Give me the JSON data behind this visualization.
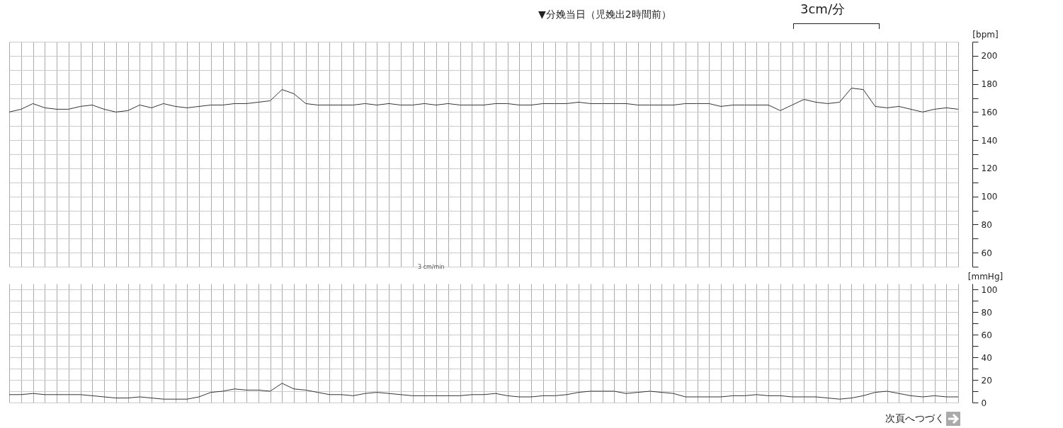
{
  "chart_data": [
    {
      "type": "line",
      "ylabel": "[bpm]",
      "annotations": [
        "▼分娩当日（児娩出2時間前）",
        "3cm/分"
      ],
      "grid": true,
      "ylim": [
        50,
        210
      ],
      "yticks": [
        {
          "value": 50,
          "label": null
        },
        60,
        {
          "value": 70,
          "label": null
        },
        80,
        {
          "value": 90,
          "label": null
        },
        100,
        {
          "value": 110,
          "label": null
        },
        120,
        {
          "value": 130,
          "label": null
        },
        140,
        {
          "value": 150,
          "label": null
        },
        160,
        {
          "value": 170,
          "label": null
        },
        180,
        {
          "value": 190,
          "label": null
        },
        200,
        {
          "value": 210,
          "label": null
        }
      ],
      "categories": [
        null,
        null,
        null,
        null,
        null,
        null,
        null,
        null,
        null,
        null,
        null,
        null,
        null,
        null,
        null,
        null,
        null,
        null,
        null,
        null,
        null,
        null,
        null,
        null,
        null,
        null,
        null,
        null,
        null,
        null,
        null,
        null,
        null,
        null,
        null,
        null,
        null,
        null,
        null,
        null,
        null,
        null,
        null,
        null,
        null,
        null,
        null,
        null,
        null,
        null,
        null,
        null,
        null,
        null,
        null,
        null,
        null,
        null,
        null,
        null,
        null,
        null,
        null,
        null,
        null,
        null,
        null,
        null,
        null,
        null,
        null,
        null,
        null,
        null,
        null,
        null,
        null,
        null,
        null,
        null,
        null
      ],
      "series": [
        {
          "color": "#333333",
          "values": [
            160,
            162,
            166,
            163,
            162,
            162,
            164,
            165,
            162,
            160,
            161,
            165,
            163,
            166,
            164,
            163,
            164,
            165,
            165,
            166,
            166,
            167,
            168,
            176,
            173,
            166,
            165,
            165,
            165,
            165,
            166,
            165,
            166,
            165,
            165,
            166,
            165,
            166,
            165,
            165,
            165,
            166,
            166,
            165,
            165,
            166,
            166,
            166,
            167,
            166,
            166,
            166,
            166,
            165,
            165,
            165,
            165,
            166,
            166,
            166,
            164,
            165,
            165,
            165,
            165,
            161,
            165,
            169,
            167,
            166,
            167,
            177,
            176,
            164,
            163,
            164,
            162,
            160,
            162,
            163,
            162
          ]
        }
      ]
    },
    {
      "type": "line",
      "ylabel": "[mmHg]",
      "annotations": [
        "3 cm/min",
        "次頁へつづく"
      ],
      "grid": true,
      "ylim": [
        0,
        105
      ],
      "yticks": [
        0,
        {
          "value": 10,
          "label": null
        },
        20,
        {
          "value": 30,
          "label": null
        },
        40,
        {
          "value": 50,
          "label": null
        },
        60,
        {
          "value": 70,
          "label": null
        },
        80,
        {
          "value": 90,
          "label": null
        },
        100
      ],
      "categories": [
        null,
        null,
        null,
        null,
        null,
        null,
        null,
        null,
        null,
        null,
        null,
        null,
        null,
        null,
        null,
        null,
        null,
        null,
        null,
        null,
        null,
        null,
        null,
        null,
        null,
        null,
        null,
        null,
        null,
        null,
        null,
        null,
        null,
        null,
        null,
        null,
        null,
        null,
        null,
        null,
        null,
        null,
        null,
        null,
        null,
        null,
        null,
        null,
        null,
        null,
        null,
        null,
        null,
        null,
        null,
        null,
        null,
        null,
        null,
        null,
        null,
        null,
        null,
        null,
        null,
        null,
        null,
        null,
        null,
        null,
        null,
        null,
        null,
        null,
        null,
        null,
        null,
        null,
        null,
        null,
        null
      ],
      "series": [
        {
          "color": "#333333",
          "values": [
            7,
            7,
            8,
            7,
            7,
            7,
            7,
            6,
            5,
            4,
            4,
            5,
            4,
            3,
            3,
            3,
            5,
            9,
            10,
            12,
            11,
            11,
            10,
            17,
            12,
            11,
            9,
            7,
            7,
            6,
            8,
            9,
            8,
            7,
            6,
            6,
            6,
            6,
            6,
            7,
            7,
            8,
            6,
            5,
            5,
            6,
            6,
            7,
            9,
            10,
            10,
            10,
            8,
            9,
            10,
            9,
            8,
            5,
            5,
            5,
            5,
            6,
            6,
            7,
            6,
            6,
            5,
            5,
            5,
            4,
            3,
            4,
            6,
            9,
            10,
            8,
            6,
            5,
            6,
            5,
            5
          ]
        }
      ]
    }
  ]
}
